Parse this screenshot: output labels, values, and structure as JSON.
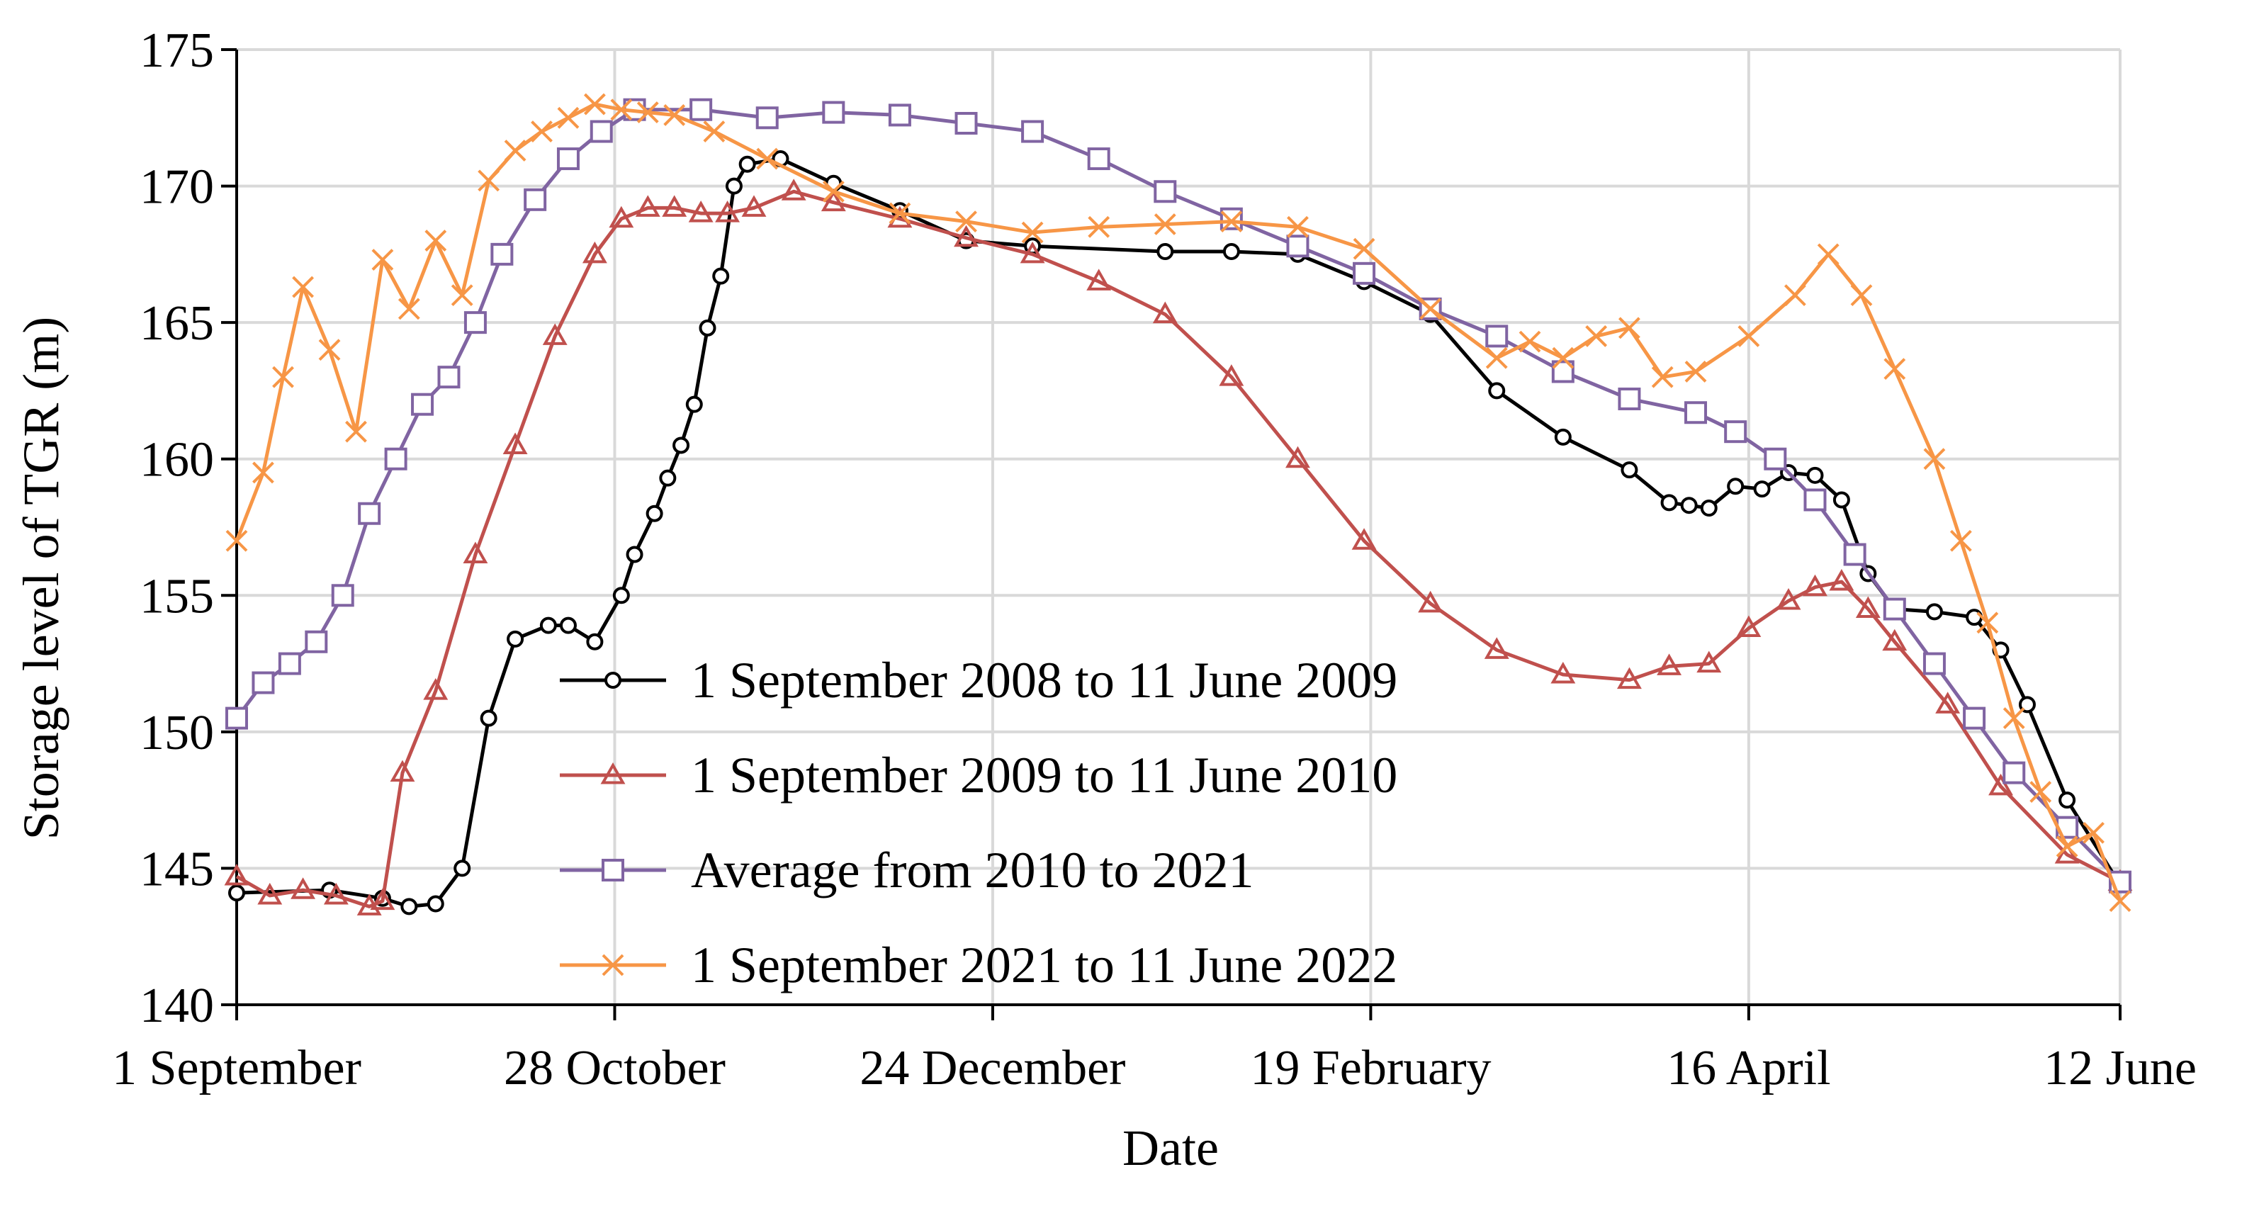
{
  "chart_data": {
    "type": "line",
    "xlabel": "Date",
    "ylabel": "Storage level of TGR (m)",
    "ylim": [
      140,
      175
    ],
    "yticks": [
      140,
      145,
      150,
      155,
      160,
      165,
      170,
      175
    ],
    "xlim": [
      0,
      284
    ],
    "xtick_positions": [
      0,
      57,
      114,
      171,
      228,
      284
    ],
    "xtick_labels": [
      "1 September",
      "28 October",
      "24 December",
      "19 February",
      "16 April",
      "12 June"
    ],
    "grid": true,
    "legend_position": "lower-center",
    "series": [
      {
        "name": "1 September 2008 to 11 June 2009",
        "color": "#000000",
        "marker": "circle",
        "x": [
          0,
          14,
          22,
          26,
          30,
          34,
          38,
          42,
          47,
          50,
          54,
          58,
          60,
          63,
          65,
          67,
          69,
          71,
          73,
          75,
          77,
          82,
          90,
          100,
          110,
          120,
          140,
          150,
          160,
          170,
          180,
          190,
          200,
          210,
          216,
          219,
          222,
          226,
          230,
          234,
          238,
          242,
          246,
          250,
          256,
          262,
          266,
          270,
          276,
          284
        ],
        "values": [
          144.1,
          144.2,
          143.9,
          143.6,
          143.7,
          145.0,
          150.5,
          153.4,
          153.9,
          153.9,
          153.3,
          155.0,
          156.5,
          158.0,
          159.3,
          160.5,
          162.0,
          164.8,
          166.7,
          170.0,
          170.8,
          171.0,
          170.1,
          169.1,
          168.0,
          167.8,
          167.6,
          167.6,
          167.5,
          166.5,
          165.3,
          162.5,
          160.8,
          159.6,
          158.4,
          158.3,
          158.2,
          159.0,
          158.9,
          159.5,
          159.4,
          158.5,
          155.8,
          154.5,
          154.4,
          154.2,
          153.0,
          151.0,
          147.5,
          144.4
        ]
      },
      {
        "name": "1 September 2009 to 11 June 2010",
        "color": "#c0504d",
        "marker": "triangle",
        "x": [
          0,
          5,
          10,
          15,
          20,
          22,
          25,
          30,
          36,
          42,
          48,
          54,
          58,
          62,
          66,
          70,
          74,
          78,
          84,
          90,
          100,
          110,
          120,
          130,
          140,
          150,
          160,
          170,
          180,
          190,
          200,
          210,
          216,
          222,
          228,
          234,
          238,
          242,
          246,
          250,
          258,
          266,
          276,
          284
        ],
        "values": [
          144.7,
          144.0,
          144.2,
          144.0,
          143.6,
          143.8,
          148.5,
          151.5,
          156.5,
          160.5,
          164.5,
          167.5,
          168.8,
          169.2,
          169.2,
          169.0,
          169.0,
          169.2,
          169.8,
          169.4,
          168.8,
          168.1,
          167.5,
          166.5,
          165.3,
          163.0,
          160.0,
          157.0,
          154.7,
          153.0,
          152.1,
          151.9,
          152.4,
          152.5,
          153.8,
          154.8,
          155.3,
          155.5,
          154.5,
          153.3,
          151.0,
          148.0,
          145.5,
          144.5
        ]
      },
      {
        "name": "Average from 2010 to 2021",
        "color": "#8064a2",
        "marker": "square",
        "x": [
          0,
          4,
          8,
          12,
          16,
          20,
          24,
          28,
          32,
          36,
          40,
          45,
          50,
          55,
          60,
          70,
          80,
          90,
          100,
          110,
          120,
          130,
          140,
          150,
          160,
          170,
          180,
          190,
          200,
          210,
          220,
          226,
          232,
          238,
          244,
          250,
          256,
          262,
          268,
          276,
          284
        ],
        "values": [
          150.5,
          151.8,
          152.5,
          153.3,
          155.0,
          158.0,
          160.0,
          162.0,
          163.0,
          165.0,
          167.5,
          169.5,
          171.0,
          172.0,
          172.8,
          172.8,
          172.5,
          172.7,
          172.6,
          172.3,
          172.0,
          171.0,
          169.8,
          168.8,
          167.8,
          166.8,
          165.5,
          164.5,
          163.2,
          162.2,
          161.7,
          161.0,
          160.0,
          158.5,
          156.5,
          154.5,
          152.5,
          150.5,
          148.5,
          146.5,
          144.5
        ]
      },
      {
        "name": "1 September  2021 to 11 June 2022",
        "color": "#f79646",
        "marker": "x",
        "x": [
          0,
          4,
          7,
          10,
          14,
          18,
          22,
          26,
          30,
          34,
          38,
          42,
          46,
          50,
          54,
          58,
          62,
          66,
          72,
          80,
          90,
          100,
          110,
          120,
          130,
          140,
          150,
          160,
          170,
          180,
          190,
          195,
          200,
          205,
          210,
          215,
          220,
          228,
          235,
          240,
          245,
          250,
          256,
          260,
          264,
          268,
          272,
          276,
          280,
          284
        ],
        "values": [
          157.0,
          159.5,
          163.0,
          166.3,
          164.0,
          161.0,
          167.3,
          165.5,
          168.0,
          166.0,
          170.2,
          171.3,
          172.0,
          172.5,
          173.0,
          172.8,
          172.7,
          172.6,
          172.0,
          171.0,
          169.8,
          169.0,
          168.7,
          168.3,
          168.5,
          168.6,
          168.7,
          168.5,
          167.7,
          165.5,
          163.7,
          164.3,
          163.7,
          164.5,
          164.8,
          163.0,
          163.2,
          164.5,
          166.0,
          167.5,
          166.0,
          163.3,
          160.0,
          157.0,
          154.0,
          150.5,
          147.8,
          145.8,
          146.3,
          143.8
        ]
      }
    ]
  }
}
